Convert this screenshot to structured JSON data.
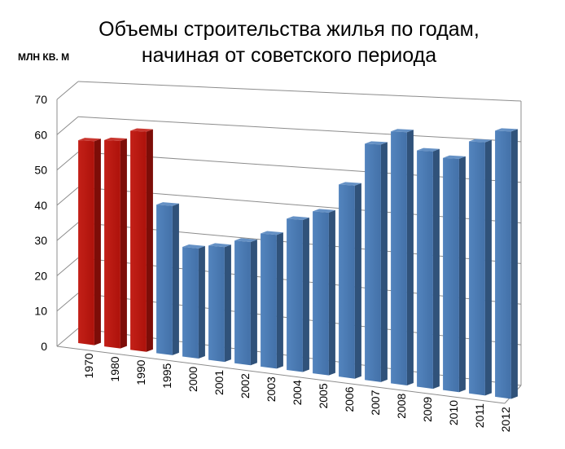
{
  "chart_data": {
    "type": "bar",
    "title": [
      "Объемы строительства жилья по годам,",
      "начиная от советского периода"
    ],
    "ylabel": "МЛН КВ. М",
    "ylim": [
      0,
      70
    ],
    "yticks": [
      0,
      10,
      20,
      30,
      40,
      50,
      60,
      70
    ],
    "grid": true,
    "categories": [
      "1970",
      "1980",
      "1990",
      "1995",
      "2000",
      "2001",
      "2002",
      "2003",
      "2004",
      "2005",
      "2006",
      "2007",
      "2008",
      "2009",
      "2010",
      "2011",
      "2012"
    ],
    "values": [
      57.5,
      58,
      61,
      41,
      30,
      31,
      33,
      35.5,
      40,
      42.5,
      50,
      61,
      64.5,
      60,
      58.5,
      63,
      66
    ],
    "colors": [
      "#c0140c",
      "#c0140c",
      "#c0140c",
      "#4a7ebb",
      "#4a7ebb",
      "#4a7ebb",
      "#4a7ebb",
      "#4a7ebb",
      "#4a7ebb",
      "#4a7ebb",
      "#4a7ebb",
      "#4a7ebb",
      "#4a7ebb",
      "#4a7ebb",
      "#4a7ebb",
      "#4a7ebb",
      "#4a7ebb"
    ],
    "soviet_color": "#c0140c",
    "modern_color": "#4a7ebb"
  }
}
